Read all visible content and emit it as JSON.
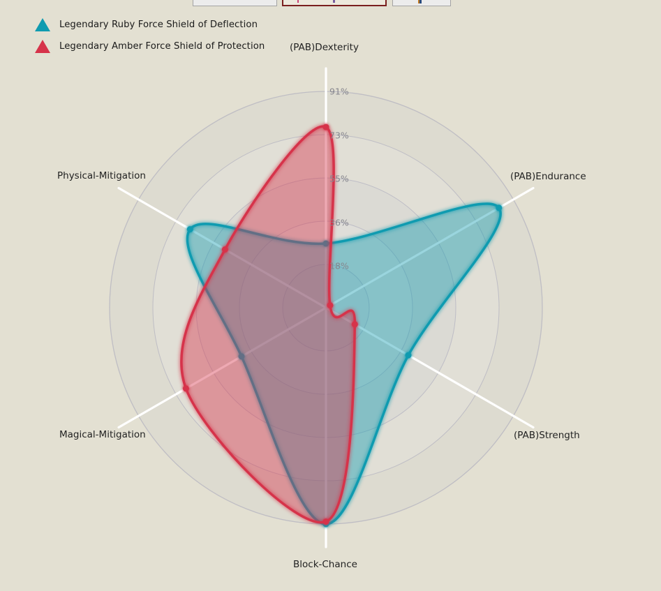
{
  "colors": {
    "background": "#e3e0d2",
    "teal": "#0f9bb0",
    "red": "#d6334a",
    "grid_ring": "rgba(150,150,180,0.45)",
    "split_area_dark": "rgba(185,185,198,0.13)",
    "split_area_light": "rgba(255,255,255,0.13)",
    "spoke": "#ffffff",
    "tick_text": "#85858d",
    "label_text": "#222222",
    "active_tab_border": "#7a1f1f"
  },
  "toolbar": {
    "buttons": [
      {
        "style": "default"
      },
      {
        "style": "active"
      },
      {
        "style": "default"
      }
    ]
  },
  "legend": {
    "items": [
      {
        "label": "Legendary Ruby Force Shield of Deflection",
        "color": "#0f9bb0"
      },
      {
        "label": "Legendary Amber Force Shield of Protection",
        "color": "#d6334a"
      }
    ]
  },
  "chart_data": {
    "type": "radar",
    "grid": "circular",
    "legend_position": "top-left",
    "categories": [
      "(PAB)Dexterity",
      "(PAB)Endurance",
      "(PAB)Strength",
      "Block-Chance",
      "Magical-Mitigation",
      "Physical-Mitigation"
    ],
    "tick_labels": [
      "18%",
      "36%",
      "55%",
      "73%",
      "91%"
    ],
    "rmax": 91,
    "units": "%",
    "series": [
      {
        "name": "Legendary Ruby Force Shield of Deflection",
        "color": "#0f9bb0",
        "values": [
          27,
          84,
          40,
          91,
          41,
          66
        ]
      },
      {
        "name": "Legendary Amber Force Shield of Protection",
        "color": "#d6334a",
        "values": [
          76,
          2,
          14,
          90,
          68,
          49
        ]
      }
    ]
  }
}
